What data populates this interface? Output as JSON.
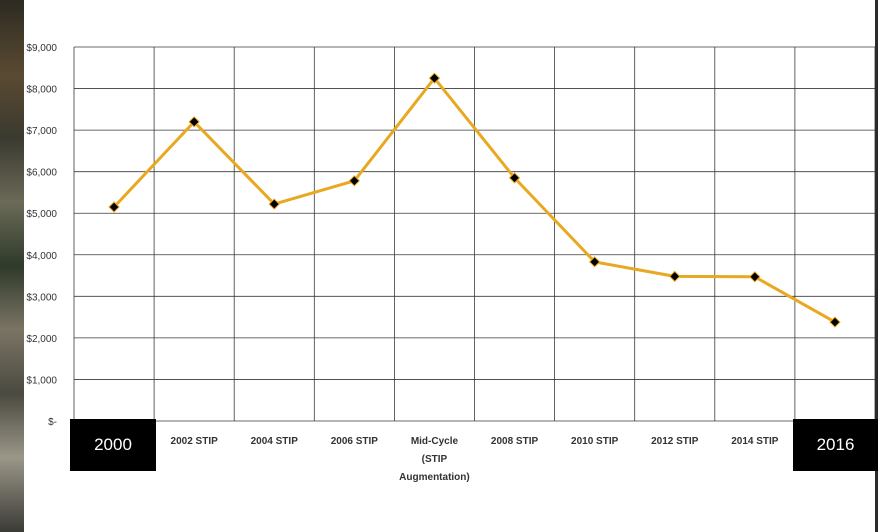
{
  "chart_data": {
    "type": "line",
    "title": "",
    "xlabel": "",
    "ylabel": "",
    "categories": [
      "2000",
      "2002 STIP",
      "2004 STIP",
      "2006 STIP",
      "Mid-Cycle (STIP Augmentation)",
      "2008 STIP",
      "2010 STIP",
      "2012 STIP",
      "2014 STIP",
      "2016"
    ],
    "category_label_lines": [
      [
        "2000"
      ],
      [
        "2002 STIP"
      ],
      [
        "2004 STIP"
      ],
      [
        "2006 STIP"
      ],
      [
        "Mid-Cycle",
        "(STIP",
        "Augmentation)"
      ],
      [
        "2008 STIP"
      ],
      [
        "2010 STIP"
      ],
      [
        "2012 STIP"
      ],
      [
        "2014 STIP"
      ],
      [
        "2016"
      ]
    ],
    "series": [
      {
        "values": [
          5150,
          7200,
          5220,
          5780,
          8250,
          5850,
          3830,
          3480,
          3470,
          2380
        ]
      }
    ],
    "ylim": [
      0,
      9000
    ],
    "yticks": [
      0,
      1000,
      2000,
      3000,
      4000,
      5000,
      6000,
      7000,
      8000,
      9000
    ],
    "ytick_labels": [
      "$-",
      "$1,000",
      "$2,000",
      "$3,000",
      "$4,000",
      "$5,000",
      "$6,000",
      "$7,000",
      "$8,000",
      "$9,000"
    ],
    "grid": true,
    "legend": "none",
    "line_color": "#E8A820",
    "marker_color": "#000000",
    "marker": "diamond",
    "overlay_labels": {
      "left": "2000",
      "right": "2016"
    }
  }
}
